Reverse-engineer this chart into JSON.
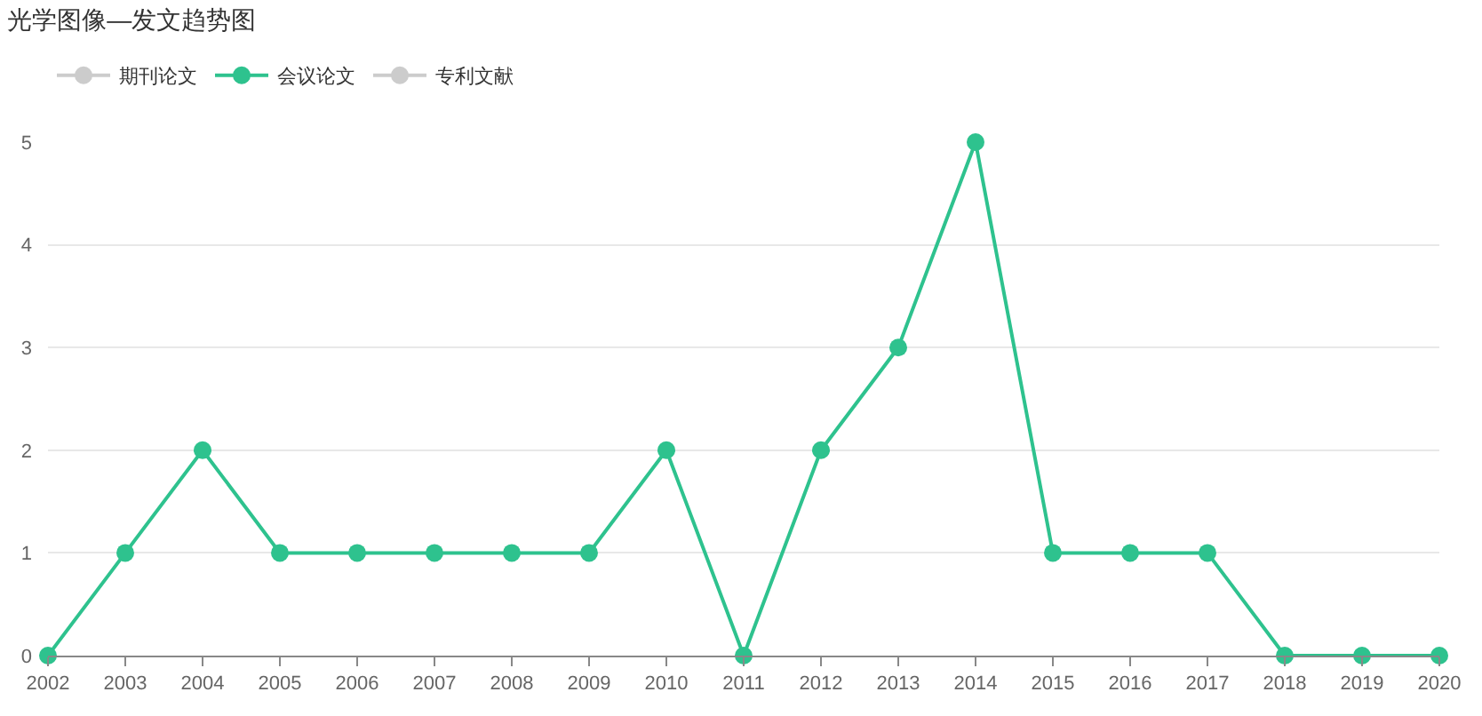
{
  "chart_data": {
    "type": "line",
    "title": "光学图像—发文趋势图",
    "x": [
      2002,
      2003,
      2004,
      2005,
      2006,
      2007,
      2008,
      2009,
      2010,
      2011,
      2012,
      2013,
      2014,
      2015,
      2016,
      2017,
      2018,
      2019,
      2020
    ],
    "series": [
      {
        "name": "期刊论文",
        "color": "#cccccc",
        "values": [
          null,
          null,
          null,
          null,
          null,
          null,
          null,
          null,
          null,
          null,
          null,
          null,
          null,
          null,
          null,
          null,
          null,
          null,
          null
        ]
      },
      {
        "name": "会议论文",
        "color": "#2ec28e",
        "values": [
          0,
          1,
          2,
          1,
          1,
          1,
          1,
          1,
          2,
          0,
          2,
          3,
          5,
          1,
          1,
          1,
          0,
          0,
          0
        ]
      },
      {
        "name": "专利文献",
        "color": "#cccccc",
        "values": [
          null,
          null,
          null,
          null,
          null,
          null,
          null,
          null,
          null,
          null,
          null,
          null,
          null,
          null,
          null,
          null,
          null,
          null,
          null
        ]
      }
    ],
    "xlim": [
      2002,
      2020
    ],
    "xticks": [
      2002,
      2003,
      2004,
      2005,
      2006,
      2007,
      2008,
      2009,
      2010,
      2011,
      2012,
      2013,
      2014,
      2015,
      2016,
      2017,
      2018,
      2019,
      2020
    ],
    "ylim": [
      0,
      5
    ],
    "yticks": [
      0,
      1,
      2,
      3,
      4,
      5
    ],
    "grid": "y",
    "legend": "top left",
    "marker": "circle",
    "line_style": "solid"
  }
}
